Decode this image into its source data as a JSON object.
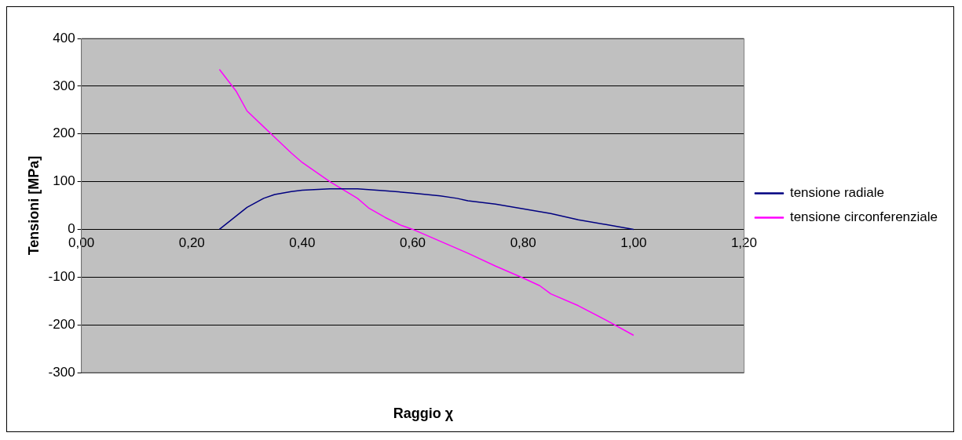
{
  "chart_data": {
    "type": "line",
    "xlabel": "Raggio χ",
    "ylabel": "Tensioni [MPa]",
    "xlim": [
      0,
      1.2
    ],
    "ylim": [
      -300,
      400
    ],
    "xticks": [
      {
        "value": 0,
        "label": "0,00"
      },
      {
        "value": 0.2,
        "label": "0,20"
      },
      {
        "value": 0.4,
        "label": "0,40"
      },
      {
        "value": 0.6,
        "label": "0,60"
      },
      {
        "value": 0.8,
        "label": "0,80"
      },
      {
        "value": 1,
        "label": "1,00"
      },
      {
        "value": 1.2,
        "label": "1,20"
      }
    ],
    "yticks": [
      -300,
      -200,
      -100,
      0,
      100,
      200,
      300,
      400
    ],
    "grid": "y",
    "legend": "right",
    "marker": "none",
    "line_style": "solid",
    "series": [
      {
        "name": "tensione radiale",
        "color": "#000080",
        "x": [
          0.25,
          0.3,
          0.33,
          0.35,
          0.38,
          0.4,
          0.45,
          0.5,
          0.55,
          0.6,
          0.65,
          0.68,
          0.7,
          0.75,
          0.8,
          0.85,
          0.9,
          0.95,
          1.0
        ],
        "values": [
          0,
          46,
          65,
          73,
          79,
          82,
          85,
          85,
          81,
          76,
          70,
          65,
          60,
          53,
          43,
          33,
          20,
          10,
          0
        ]
      },
      {
        "name": "tensione circonferenziale",
        "color": "#ff00ff",
        "x": [
          0.25,
          0.28,
          0.3,
          0.33,
          0.35,
          0.38,
          0.4,
          0.45,
          0.5,
          0.52,
          0.55,
          0.58,
          0.6,
          0.65,
          0.7,
          0.75,
          0.8,
          0.83,
          0.85,
          0.9,
          0.95,
          1.0
        ],
        "values": [
          335,
          290,
          248,
          215,
          193,
          160,
          140,
          100,
          65,
          45,
          25,
          8,
          0,
          -25,
          -50,
          -77,
          -102,
          -118,
          -135,
          -160,
          -190,
          -222
        ]
      }
    ]
  }
}
